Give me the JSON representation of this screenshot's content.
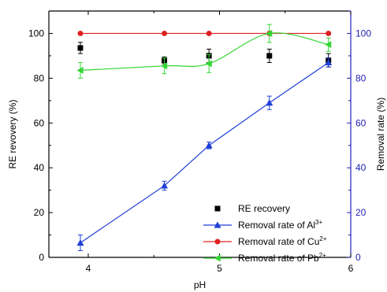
{
  "chart_data": {
    "type": "line",
    "xlabel": "pH",
    "ylabel_left": "RE revovery (%)",
    "ylabel_right": "Removal rate (%)",
    "xlim": [
      3.7,
      6.0
    ],
    "ylim_left": [
      0,
      110
    ],
    "ylim_right": [
      0,
      110
    ],
    "x_ticks": [
      4,
      5,
      6
    ],
    "y_ticks_left": [
      0,
      20,
      40,
      60,
      80,
      100
    ],
    "y_ticks_right": [
      0,
      20,
      40,
      60,
      80,
      100
    ],
    "x_tick_labels": [
      "4",
      "5",
      "6"
    ],
    "y_tick_labels_left": [
      "0",
      "20",
      "40",
      "60",
      "80",
      "100"
    ],
    "y_tick_labels_right": [
      "0",
      "20",
      "40",
      "60",
      "80",
      "100"
    ],
    "legend_position": "lower-right",
    "series": [
      {
        "name": "RE recovery",
        "axis": "left",
        "marker": "square",
        "color": "#000000",
        "line": false,
        "x": [
          3.94,
          4.58,
          4.92,
          5.38,
          5.83
        ],
        "y": [
          93.5,
          88,
          90,
          90,
          88
        ],
        "err": [
          2.5,
          1.5,
          3,
          3,
          3
        ]
      },
      {
        "name_parts": [
          "Removal rate of Al",
          "3+"
        ],
        "axis": "right",
        "marker": "triangle-up",
        "color": "#1f3fd6",
        "line": true,
        "x": [
          3.94,
          4.58,
          4.92,
          5.38,
          5.83
        ],
        "y": [
          6.5,
          32,
          50,
          69,
          87
        ],
        "err": [
          3.5,
          2,
          1.5,
          3,
          2
        ]
      },
      {
        "name_parts": [
          "Removal rate of Cu",
          "2+"
        ],
        "axis": "right",
        "marker": "circle",
        "color": "#e02020",
        "line": true,
        "x": [
          3.94,
          4.58,
          4.92,
          5.38,
          5.83
        ],
        "y": [
          100,
          100,
          100,
          100,
          100
        ],
        "err": [
          0,
          0,
          0,
          0,
          0
        ]
      },
      {
        "name_parts": [
          "Removal rate of Pb",
          "2+"
        ],
        "axis": "right",
        "marker": "triangle-left",
        "color": "#33d633",
        "line": true,
        "smooth": true,
        "x": [
          3.94,
          4.58,
          4.92,
          5.38,
          5.83
        ],
        "y": [
          83.5,
          85.5,
          86.5,
          100,
          95
        ],
        "err": [
          3.5,
          3.5,
          4,
          4,
          3
        ]
      }
    ]
  }
}
